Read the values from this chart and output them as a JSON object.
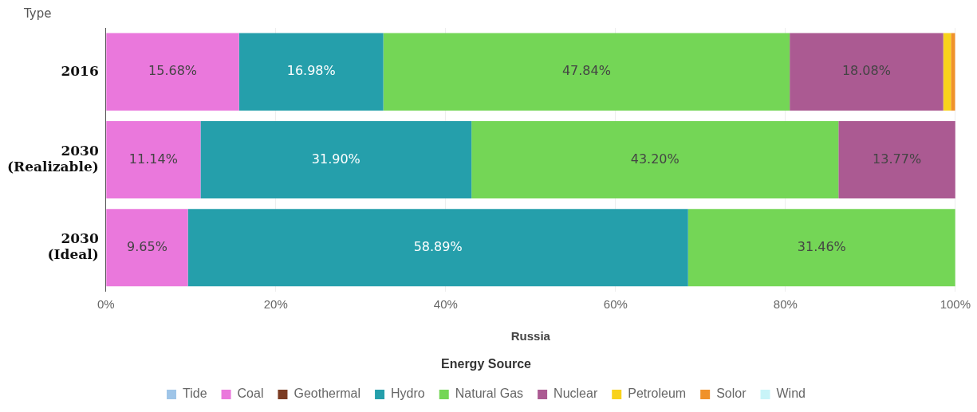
{
  "chart_data": {
    "type": "bar",
    "orientation": "horizontal",
    "stacked": true,
    "ylabel": "Type",
    "xlabel": "Russia",
    "legend_title": "Energy Source",
    "legend": "bottom",
    "grid": "x",
    "categories": [
      "2016",
      "2030 (Realizable)",
      "2030 (Ideal)"
    ],
    "xlim": [
      0,
      100
    ],
    "xticks": [
      {
        "value": 0,
        "label": "0%"
      },
      {
        "value": 20,
        "label": "20%"
      },
      {
        "value": 40,
        "label": "40%"
      },
      {
        "value": 60,
        "label": "60%"
      },
      {
        "value": 80,
        "label": "80%"
      },
      {
        "value": 100,
        "label": "100%"
      }
    ],
    "series": [
      {
        "name": "Tide",
        "color": "#9fc5e8",
        "values": [
          null,
          null,
          null
        ]
      },
      {
        "name": "Coal",
        "color": "#ea78dc",
        "values": [
          15.68,
          11.14,
          9.65
        ],
        "value_labels": [
          "15.68%",
          "11.14%",
          "9.65%"
        ]
      },
      {
        "name": "Geothermal",
        "color": "#7b3b22",
        "values": [
          null,
          null,
          null
        ]
      },
      {
        "name": "Hydro",
        "color": "#259fab",
        "values": [
          16.98,
          31.9,
          58.89
        ],
        "value_labels": [
          "16.98%",
          "31.90%",
          "58.89%"
        ]
      },
      {
        "name": "Natural Gas",
        "color": "#74d656",
        "values": [
          47.84,
          43.2,
          31.46
        ],
        "value_labels": [
          "47.84%",
          "43.20%",
          "31.46%"
        ]
      },
      {
        "name": "Nuclear",
        "color": "#ab5a92",
        "values": [
          18.08,
          13.77,
          null
        ],
        "value_labels": [
          "18.08%",
          "13.77%",
          null
        ]
      },
      {
        "name": "Petroleum",
        "color": "#f8d21c",
        "values": [
          0.9,
          null,
          null
        ]
      },
      {
        "name": "Solor",
        "color": "#f0922a",
        "values": [
          0.5,
          null,
          null
        ]
      },
      {
        "name": "Wind",
        "color": "#c8f4f8",
        "values": [
          null,
          null,
          null
        ]
      }
    ]
  }
}
